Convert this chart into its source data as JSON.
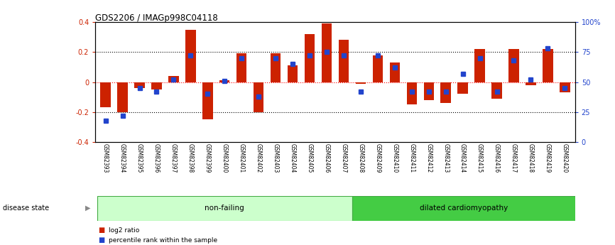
{
  "title": "GDS2206 / IMAGp998C04118",
  "samples": [
    "GSM82393",
    "GSM82394",
    "GSM82395",
    "GSM82396",
    "GSM82397",
    "GSM82398",
    "GSM82399",
    "GSM82400",
    "GSM82401",
    "GSM82402",
    "GSM82403",
    "GSM82404",
    "GSM82405",
    "GSM82406",
    "GSM82407",
    "GSM82408",
    "GSM82409",
    "GSM82410",
    "GSM82411",
    "GSM82412",
    "GSM82413",
    "GSM82414",
    "GSM82415",
    "GSM82416",
    "GSM82417",
    "GSM82418",
    "GSM82419",
    "GSM82420"
  ],
  "log2_ratio": [
    -0.17,
    -0.2,
    -0.04,
    -0.05,
    0.04,
    0.35,
    -0.25,
    0.01,
    0.19,
    -0.2,
    0.19,
    0.11,
    0.32,
    0.39,
    0.28,
    -0.01,
    0.18,
    0.13,
    -0.15,
    -0.12,
    -0.14,
    -0.08,
    0.22,
    -0.11,
    0.22,
    -0.02,
    0.22,
    -0.07
  ],
  "percentile": [
    18,
    22,
    45,
    42,
    52,
    72,
    40,
    51,
    70,
    38,
    70,
    65,
    72,
    75,
    72,
    42,
    72,
    62,
    42,
    42,
    42,
    57,
    70,
    42,
    68,
    52,
    78,
    45
  ],
  "non_failing_count": 15,
  "ylim_left": [
    -0.4,
    0.4
  ],
  "ylim_right": [
    0,
    100
  ],
  "bar_color": "#cc2200",
  "marker_color": "#2244cc",
  "nf_color": "#ccffcc",
  "dc_color": "#44cc44",
  "label_log2": "log2 ratio",
  "label_pct": "percentile rank within the sample",
  "label_nf": "non-failing",
  "label_dc": "dilated cardiomyopathy",
  "label_disease": "disease state",
  "tick_bg_color": "#cccccc",
  "ytick_labels_left": [
    "-0.4",
    "-0.2",
    "0",
    "0.2",
    "0.4"
  ],
  "ytick_vals_left": [
    -0.4,
    -0.2,
    0.0,
    0.2,
    0.4
  ],
  "ytick_labels_right": [
    "0",
    "25",
    "50",
    "75",
    "100%"
  ],
  "ytick_vals_right": [
    0,
    25,
    50,
    75,
    100
  ]
}
